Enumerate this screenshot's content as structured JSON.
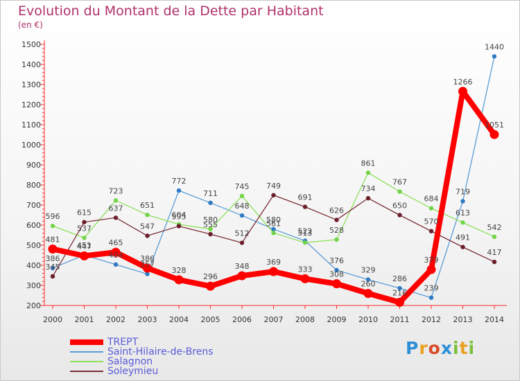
{
  "title": "Evolution du Montant de la Dette par Habitant",
  "subtitle": "(en €)",
  "logo_text": "Proxiti",
  "chart_data": {
    "type": "line",
    "x": [
      "2000",
      "2001",
      "2002",
      "2003",
      "2004",
      "2005",
      "2006",
      "2007",
      "2008",
      "2009",
      "2010",
      "2011",
      "2012",
      "2013",
      "2014"
    ],
    "ylim": [
      200,
      1500
    ],
    "yticks": [
      200,
      300,
      400,
      500,
      600,
      700,
      800,
      900,
      1000,
      1100,
      1200,
      1300,
      1400,
      1500
    ],
    "grid": false,
    "legend_position": "bottom-left",
    "series": [
      {
        "name": "Saint-Hilaire-de-Brens",
        "color": "#5b9bd5",
        "marker": "#2f7ac4",
        "values": [
          386,
          451,
          404,
          357,
          772,
          711,
          648,
          580,
          522,
          376,
          329,
          286,
          239,
          719,
          1440
        ]
      },
      {
        "name": "Salagnon",
        "color": "#8ee05a",
        "marker": "#73d44a",
        "values": [
          596,
          537,
          723,
          651,
          604,
          580,
          745,
          561,
          513,
          528,
          861,
          767,
          684,
          613,
          542
        ]
      },
      {
        "name": "Soleymieu",
        "color": "#7a2e38",
        "marker": "#6b1f2a",
        "values": [
          345,
          615,
          637,
          547,
          595,
          555,
          512,
          749,
          691,
          626,
          734,
          650,
          570,
          491,
          417
        ]
      },
      {
        "name": "TREPT",
        "color": "#ff0000",
        "marker": "#ff0000",
        "values": [
          481,
          447,
          465,
          386,
          328,
          296,
          348,
          369,
          333,
          308,
          260,
          216,
          379,
          1266,
          1051
        ]
      }
    ]
  }
}
